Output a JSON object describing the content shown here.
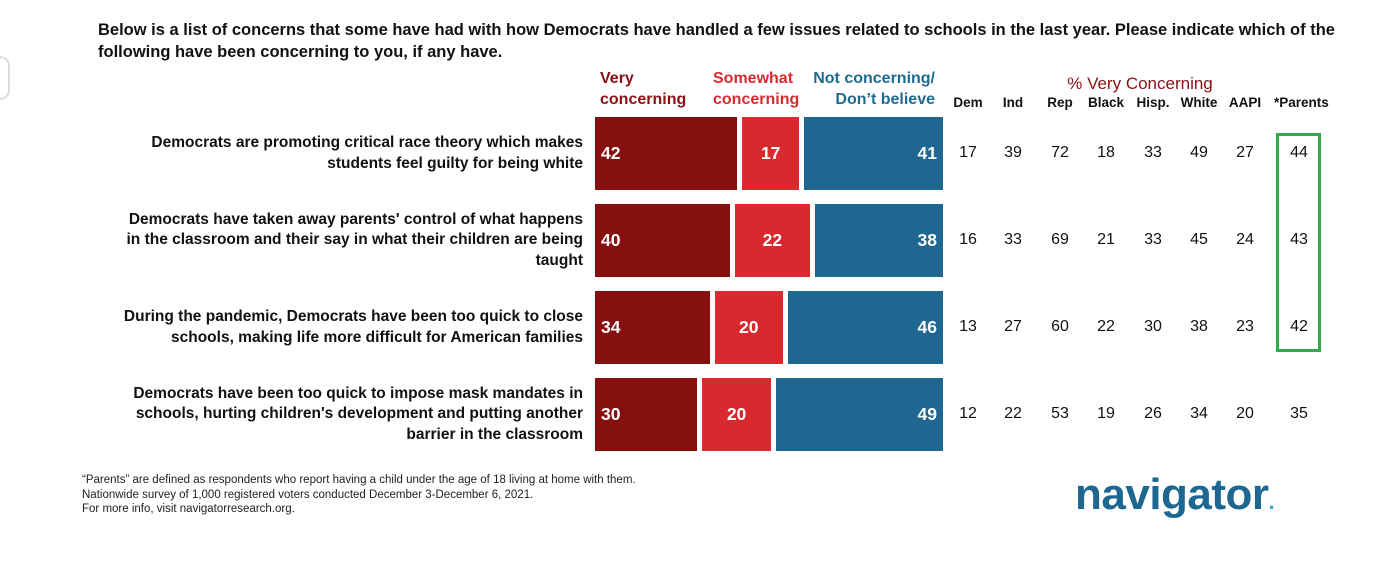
{
  "question": "Below is a list of concerns that some have had with how Democrats have handled a few issues related to schools in the last year. Please indicate which of the following have been concerning to you, if any have.",
  "headers": {
    "very": [
      "Very",
      "concerning"
    ],
    "somewhat": [
      "Somewhat",
      "concerning"
    ],
    "not": [
      "Not concerning/",
      "Don’t believe"
    ],
    "pct_title": "% Very Concerning",
    "columns": [
      "Dem",
      "Ind",
      "Rep",
      "Black",
      "Hisp.",
      "White",
      "AAPI",
      "*Parents"
    ]
  },
  "chart_data": {
    "type": "bar",
    "stacked": true,
    "orientation": "horizontal",
    "xlim": [
      0,
      100
    ],
    "categories": [
      "Democrats are promoting critical race theory which makes students feel guilty for being white",
      "Democrats have taken away parents' control of what happens in the classroom and their say in what their children are being taught",
      "During the pandemic, Democrats have been too quick to close schools, making life more difficult for American families",
      "Democrats have been too quick to impose mask mandates in schools, hurting children's development and putting another barrier in the classroom"
    ],
    "series": [
      {
        "name": "Very concerning",
        "color": "#86100f",
        "values": [
          42,
          40,
          34,
          30
        ]
      },
      {
        "name": "Somewhat concerning",
        "color": "#d8292e",
        "values": [
          17,
          22,
          20,
          20
        ]
      },
      {
        "name": "Not concerning/ Don’t believe",
        "color": "#1d6791",
        "values": [
          41,
          38,
          46,
          49
        ]
      }
    ]
  },
  "rows": [
    {
      "label_lines": [
        "Democrats are promoting critical race theory which makes",
        "students feel guilty for being white"
      ],
      "very": "42",
      "some": "17",
      "not": "41",
      "pct": [
        "17",
        "39",
        "72",
        "18",
        "33",
        "49",
        "27",
        "44"
      ]
    },
    {
      "label_lines": [
        "Democrats have taken away parents' control of what happens",
        "in the classroom and their say in what their children are being",
        "taught"
      ],
      "very": "40",
      "some": "22",
      "not": "38",
      "pct": [
        "16",
        "33",
        "69",
        "21",
        "33",
        "45",
        "24",
        "43"
      ]
    },
    {
      "label_lines": [
        "During the pandemic, Democrats have been too quick to close",
        "schools, making life more difficult for American families"
      ],
      "very": "34",
      "some": "20",
      "not": "46",
      "pct": [
        "13",
        "27",
        "60",
        "22",
        "30",
        "38",
        "23",
        "42"
      ]
    },
    {
      "label_lines": [
        "Democrats have been too quick to impose mask mandates in",
        "schools, hurting children's development and putting another",
        "barrier in the classroom"
      ],
      "very": "30",
      "some": "20",
      "not": "49",
      "pct": [
        "12",
        "22",
        "53",
        "19",
        "26",
        "34",
        "20",
        "35"
      ]
    }
  ],
  "footnotes": [
    "“Parents” are defined as respondents who report having a child under the age of 18 living at home with them.",
    "Nationwide survey of 1,000 registered voters conducted December 3-December 6, 2021.",
    "For more info, visit navigatorresearch.org."
  ],
  "logo": {
    "text": "navigator",
    "dot": "."
  },
  "colors": {
    "very": "#86100f",
    "somewhat": "#d8292e",
    "not": "#1d6791",
    "highlight": "#2ead4f"
  }
}
